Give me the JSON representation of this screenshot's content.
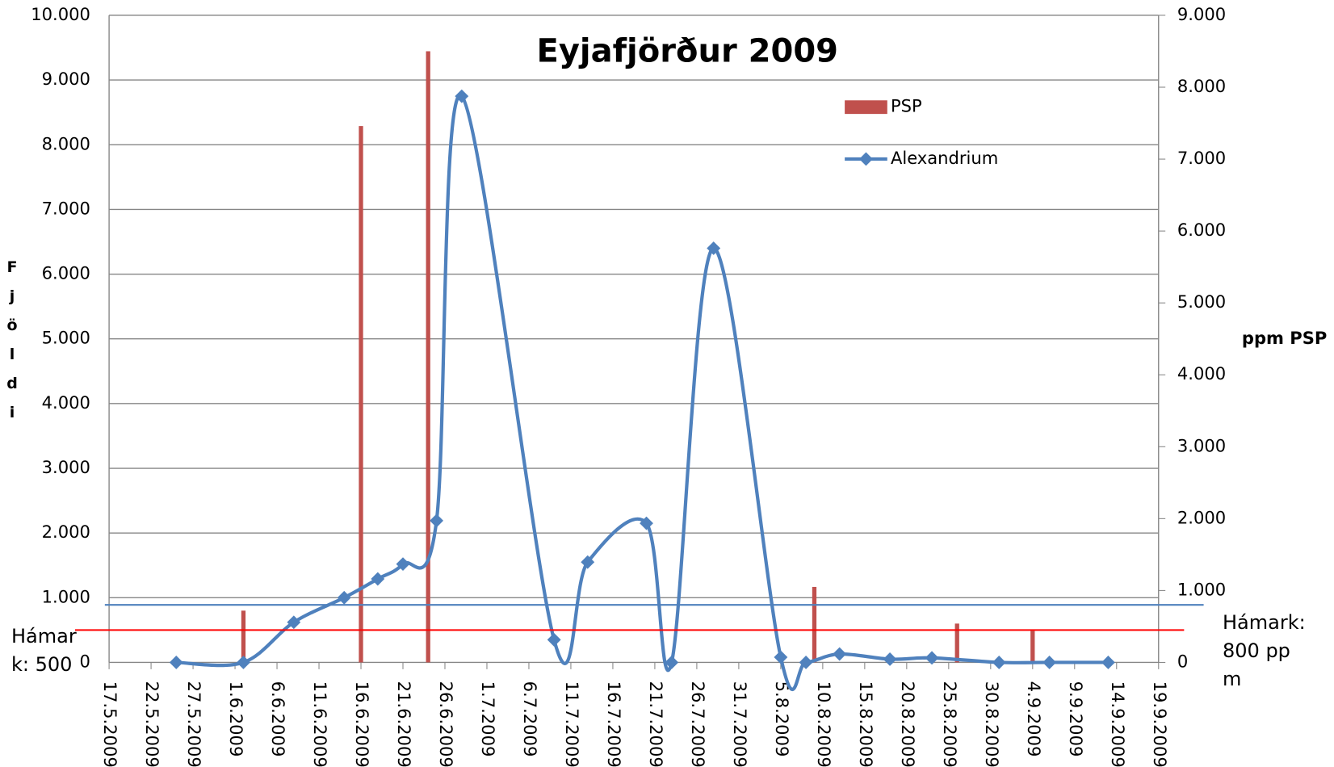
{
  "chart_data": {
    "type": "bar-line",
    "title": "Eyjafjörður 2009",
    "y_label": "Fjöldi",
    "y2_label": "ppm PSP",
    "xlim": [
      "2009-05-17",
      "2009-09-19"
    ],
    "xticks": [
      {
        "value": "2009-05-17",
        "label": "17.5.2009"
      },
      {
        "value": "2009-05-22",
        "label": "22.5.2009"
      },
      {
        "value": "2009-05-27",
        "label": "27.5.2009"
      },
      {
        "value": "2009-06-01",
        "label": "1.6.2009"
      },
      {
        "value": "2009-06-06",
        "label": "6.6.2009"
      },
      {
        "value": "2009-06-11",
        "label": "11.6.2009"
      },
      {
        "value": "2009-06-16",
        "label": "16.6.2009"
      },
      {
        "value": "2009-06-21",
        "label": "21.6.2009"
      },
      {
        "value": "2009-06-26",
        "label": "26.6.2009"
      },
      {
        "value": "2009-07-01",
        "label": "1.7.2009"
      },
      {
        "value": "2009-07-06",
        "label": "6.7.2009"
      },
      {
        "value": "2009-07-11",
        "label": "11.7.2009"
      },
      {
        "value": "2009-07-16",
        "label": "16.7.2009"
      },
      {
        "value": "2009-07-21",
        "label": "21.7.2009"
      },
      {
        "value": "2009-07-26",
        "label": "26.7.2009"
      },
      {
        "value": "2009-07-31",
        "label": "31.7.2009"
      },
      {
        "value": "2009-08-05",
        "label": "5.8.2009"
      },
      {
        "value": "2009-08-10",
        "label": "10.8.2009"
      },
      {
        "value": "2009-08-15",
        "label": "15.8.2009"
      },
      {
        "value": "2009-08-20",
        "label": "20.8.2009"
      },
      {
        "value": "2009-08-25",
        "label": "25.8.2009"
      },
      {
        "value": "2009-08-30",
        "label": "30.8.2009"
      },
      {
        "value": "2009-09-04",
        "label": "4.9.2009"
      },
      {
        "value": "2009-09-09",
        "label": "9.9.2009"
      },
      {
        "value": "2009-09-14",
        "label": "14.9.2009"
      },
      {
        "value": "2009-09-19",
        "label": "19.9.2009"
      }
    ],
    "ylim": [
      0,
      10000
    ],
    "yticks": [
      0,
      {
        "value": 1000,
        "label": "1.000"
      },
      {
        "value": 2000,
        "label": "2.000"
      },
      {
        "value": 3000,
        "label": "3.000"
      },
      {
        "value": 4000,
        "label": "4.000"
      },
      {
        "value": 5000,
        "label": "5.000"
      },
      {
        "value": 6000,
        "label": "6.000"
      },
      {
        "value": 7000,
        "label": "7.000"
      },
      {
        "value": 8000,
        "label": "8.000"
      },
      {
        "value": 9000,
        "label": "9.000"
      },
      {
        "value": 10000,
        "label": "10.000"
      }
    ],
    "y2lim": [
      0,
      9000
    ],
    "y2ticks": [
      0,
      {
        "value": 1000,
        "label": "1.000"
      },
      {
        "value": 2000,
        "label": "2.000"
      },
      {
        "value": 3000,
        "label": "3.000"
      },
      {
        "value": 4000,
        "label": "4.000"
      },
      {
        "value": 5000,
        "label": "5.000"
      },
      {
        "value": 6000,
        "label": "6.000"
      },
      {
        "value": 7000,
        "label": "7.000"
      },
      {
        "value": 8000,
        "label": "8.000"
      },
      {
        "value": 9000,
        "label": "9.000"
      }
    ],
    "grid": true,
    "series": [
      {
        "name": "PSP",
        "type": "bar",
        "axis": "y2",
        "color": "#c0504d",
        "x": [
          "2009-06-02",
          "2009-06-16",
          "2009-06-24",
          "2009-08-09",
          "2009-08-26",
          "2009-09-04"
        ],
        "values": [
          720,
          7460,
          8500,
          1050,
          540,
          440
        ]
      },
      {
        "name": "Alexandrium",
        "type": "line",
        "axis": "y",
        "color": "#4f81bd",
        "x": [
          "2009-05-25",
          "2009-06-02",
          "2009-06-08",
          "2009-06-14",
          "2009-06-18",
          "2009-06-21",
          "2009-06-25",
          "2009-06-28",
          "2009-07-09",
          "2009-07-13",
          "2009-07-20",
          "2009-07-23",
          "2009-07-28",
          "2009-08-05",
          "2009-08-08",
          "2009-08-12",
          "2009-08-18",
          "2009-08-23",
          "2009-08-31",
          "2009-09-06",
          "2009-09-13"
        ],
        "values": [
          0,
          0,
          620,
          1000,
          1290,
          1520,
          2190,
          8750,
          350,
          1550,
          2150,
          0,
          6400,
          80,
          0,
          130,
          50,
          70,
          0,
          0,
          0
        ]
      }
    ],
    "annotations": [
      {
        "text": "Hámark: 500",
        "value": 500,
        "axis": "y",
        "color": "#ff0000"
      },
      {
        "text": "Hámark: 800 ppm",
        "value": 800,
        "axis": "y2",
        "color": "#4f81bd"
      }
    ]
  }
}
